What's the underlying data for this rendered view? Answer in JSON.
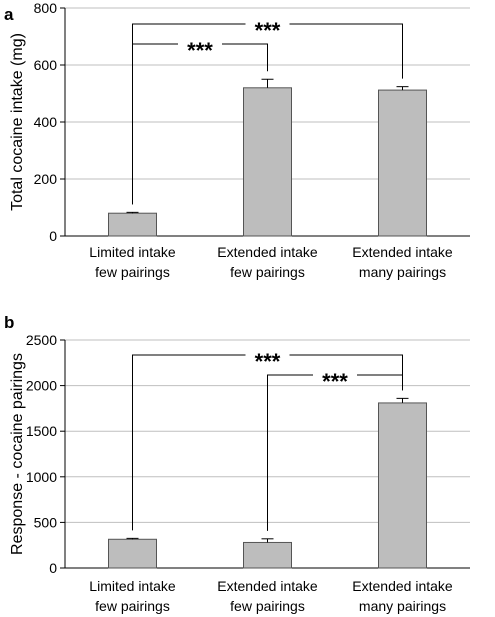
{
  "chart_data": [
    {
      "panel": "a",
      "type": "bar",
      "ylabel": "Total cocaine intake (mg)",
      "ylim": [
        0,
        800
      ],
      "yticks": [
        0,
        200,
        400,
        600,
        800
      ],
      "grid": true,
      "categories": [
        [
          "Limited intake",
          "few pairings"
        ],
        [
          "Extended intake",
          "few pairings"
        ],
        [
          "Extended intake",
          "many pairings"
        ]
      ],
      "values": [
        80,
        520,
        512
      ],
      "errors": [
        3,
        30,
        12
      ],
      "significance": [
        {
          "from": 0,
          "to": 1,
          "label": "***"
        },
        {
          "from": 0,
          "to": 2,
          "label": "***"
        }
      ]
    },
    {
      "panel": "b",
      "type": "bar",
      "ylabel": "Response - cocaine pairings",
      "ylim": [
        0,
        2500
      ],
      "yticks": [
        0,
        500,
        1000,
        1500,
        2000,
        2500
      ],
      "grid": true,
      "categories": [
        [
          "Limited intake",
          "few pairings"
        ],
        [
          "Extended intake",
          "few pairings"
        ],
        [
          "Extended intake",
          "many pairings"
        ]
      ],
      "values": [
        315,
        280,
        1810
      ],
      "errors": [
        10,
        40,
        50
      ],
      "significance": [
        {
          "from": 0,
          "to": 2,
          "label": "***"
        },
        {
          "from": 1,
          "to": 2,
          "label": "***"
        }
      ]
    }
  ],
  "colors": {
    "bar_fill": "#bdbdbd",
    "bar_stroke": "#555555",
    "grid": "#bfbfbf",
    "axis": "#000000"
  }
}
